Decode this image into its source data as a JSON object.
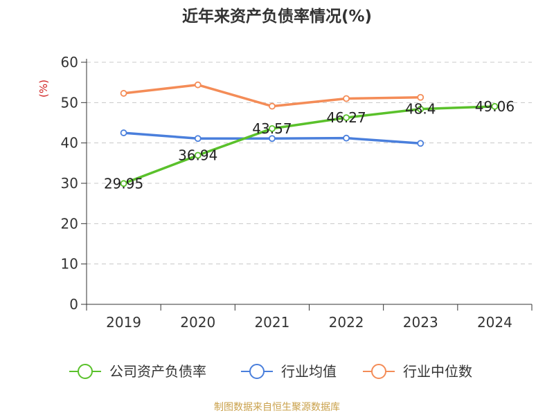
{
  "title": "近年来资产负债率情况(%)",
  "source_note": "制图数据来自恒生聚源数据库",
  "chart_data": {
    "type": "line",
    "title": "近年来资产负债率情况(%)",
    "ylabel": "(%)",
    "xlabel": "",
    "categories": [
      "2019",
      "2020",
      "2021",
      "2022",
      "2023",
      "2024"
    ],
    "ylim": [
      0,
      60
    ],
    "yticks": [
      0,
      10,
      20,
      30,
      40,
      50,
      60
    ],
    "grid": true,
    "legend": "bottom",
    "series": [
      {
        "name": "公司资产负债率",
        "color": "#5ac12b",
        "values": [
          29.95,
          36.94,
          43.57,
          46.27,
          48.4,
          49.06
        ],
        "labels": [
          "29.95",
          "36.94",
          "43.57",
          "46.27",
          "48.4",
          "49.06"
        ]
      },
      {
        "name": "行业均值",
        "color": "#4a7fdc",
        "values": [
          42.5,
          41.1,
          41.1,
          41.2,
          39.9,
          null
        ]
      },
      {
        "name": "行业中位数",
        "color": "#f48c57",
        "values": [
          52.3,
          54.4,
          49.1,
          51.0,
          51.3,
          null
        ]
      }
    ]
  }
}
